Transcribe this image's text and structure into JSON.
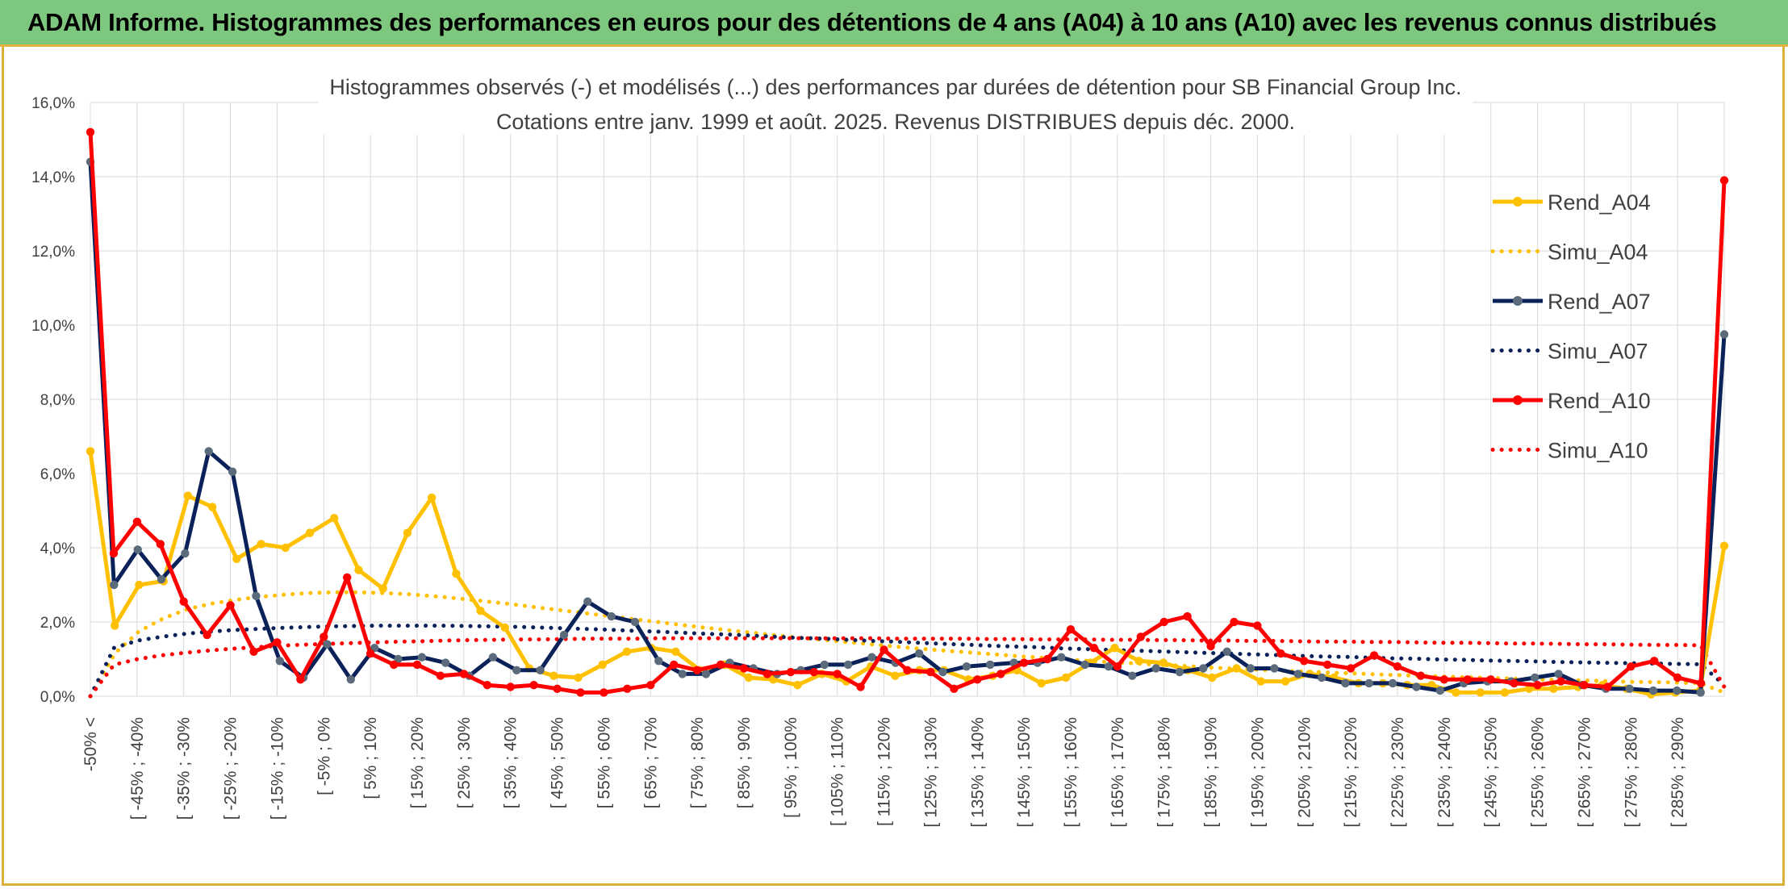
{
  "header": {
    "title": "ADAM Informe. Histogrammes des performances en euros pour des détentions de 4 ans (A04) à 10 ans (A10) avec les revenus connus distribués"
  },
  "colors": {
    "header_bg": "#7ec77e",
    "frame_border": "#d9b13a",
    "A04": "#FFC000",
    "A07": "#0B2159",
    "A07_marker": "#5B6B7B",
    "A10": "#FF0000",
    "grid": "#D9D9D9"
  },
  "chart_data": {
    "type": "line",
    "title": "Histogrammes observés (-) et modélisés (...) des performances par durées de détention pour SB Financial Group Inc.",
    "subtitle": "Cotations entre janv. 1999 et août. 2025. Revenus DISTRIBUES depuis déc. 2000.",
    "xlabel": "",
    "ylabel": "",
    "ylim": [
      0,
      16
    ],
    "y_ticks": [
      "0,0%",
      "2,0%",
      "4,0%",
      "6,0%",
      "8,0%",
      "10,0%",
      "12,0%",
      "14,0%",
      "16,0%"
    ],
    "grid": true,
    "legend_position": "right",
    "x_labels": [
      "-50% <",
      "[ -45% ; -40%",
      "[ -35% ; -30%",
      "[ -25% ; -20%",
      "[ -15% ; -10%",
      "[ -5% ; 0%",
      "[ 5% ; 10%",
      "[ 15% ; 20%",
      "[ 25% ; 30%",
      "[ 35% ; 40%",
      "[ 45% ; 50%",
      "[ 55% ; 60%",
      "[ 65% ; 70%",
      "[ 75% ; 80%",
      "[ 85% ; 90%",
      "[ 95% ; 100%",
      "[ 105% ; 110%",
      "[ 115% ; 120%",
      "[ 125% ; 130%",
      "[ 135% ; 140%",
      "[ 145% ; 150%",
      "[ 155% ; 160%",
      "[ 165% ; 170%",
      "[ 175% ; 180%",
      "[ 185% ; 190%",
      "[ 195% ; 200%",
      "[ 205% ; 210%",
      "[ 215% ; 220%",
      "[ 225% ; 230%",
      "[ 235% ; 240%",
      "[ 245% ; 250%",
      "[ 255% ; 260%",
      "[ 265% ; 270%",
      "[ 275% ; 280%",
      "[ 285% ; 290%"
    ],
    "series": [
      {
        "name": "Rend_A04",
        "style": "solid",
        "color": "#FFC000",
        "markers": true,
        "values": [
          6.6,
          1.9,
          3.0,
          3.1,
          5.4,
          5.1,
          3.7,
          4.1,
          4.0,
          4.4,
          4.8,
          3.4,
          2.9,
          4.4,
          5.35,
          3.3,
          2.3,
          1.85,
          0.75,
          0.55,
          0.5,
          0.85,
          1.2,
          1.3,
          1.2,
          0.7,
          0.85,
          0.5,
          0.45,
          0.3,
          0.6,
          0.4,
          0.8,
          0.55,
          0.7,
          0.7,
          0.45,
          0.55,
          0.7,
          0.35,
          0.5,
          0.9,
          1.3,
          0.95,
          0.9,
          0.7,
          0.5,
          0.75,
          0.4,
          0.4,
          0.6,
          0.5,
          0.35,
          0.35,
          0.3,
          0.3,
          0.1,
          0.1,
          0.1,
          0.2,
          0.2,
          0.25,
          0.3,
          0.2,
          0.05,
          0.1,
          0.15,
          4.05
        ]
      },
      {
        "name": "Simu_A04",
        "style": "dotted",
        "color": "#FFC000",
        "markers": false,
        "values": [
          0.0,
          1.15,
          1.75,
          2.1,
          2.35,
          2.5,
          2.6,
          2.68,
          2.74,
          2.78,
          2.8,
          2.8,
          2.78,
          2.75,
          2.7,
          2.64,
          2.57,
          2.5,
          2.42,
          2.34,
          2.26,
          2.18,
          2.1,
          2.02,
          1.94,
          1.86,
          1.79,
          1.72,
          1.65,
          1.58,
          1.52,
          1.46,
          1.4,
          1.34,
          1.28,
          1.23,
          1.18,
          1.13,
          1.08,
          1.04,
          0.99,
          0.95,
          0.91,
          0.88,
          0.84,
          0.81,
          0.77,
          0.74,
          0.71,
          0.68,
          0.66,
          0.63,
          0.61,
          0.58,
          0.56,
          0.54,
          0.52,
          0.5,
          0.48,
          0.46,
          0.44,
          0.43,
          0.41,
          0.39,
          0.38,
          0.37,
          0.35,
          0.1
        ]
      },
      {
        "name": "Rend_A07",
        "style": "solid",
        "color": "#0B2159",
        "markers": true,
        "values": [
          14.4,
          3.0,
          3.95,
          3.15,
          3.85,
          6.6,
          6.05,
          2.7,
          0.95,
          0.5,
          1.4,
          0.45,
          1.3,
          1.0,
          1.05,
          0.9,
          0.55,
          1.05,
          0.7,
          0.7,
          1.65,
          2.55,
          2.15,
          2.0,
          0.95,
          0.6,
          0.6,
          0.9,
          0.75,
          0.6,
          0.7,
          0.85,
          0.85,
          1.05,
          0.9,
          1.15,
          0.65,
          0.8,
          0.85,
          0.9,
          0.9,
          1.05,
          0.85,
          0.8,
          0.55,
          0.75,
          0.65,
          0.75,
          1.2,
          0.75,
          0.75,
          0.6,
          0.5,
          0.35,
          0.35,
          0.35,
          0.25,
          0.15,
          0.35,
          0.4,
          0.4,
          0.5,
          0.6,
          0.3,
          0.2,
          0.2,
          0.15,
          0.15,
          0.1,
          9.75
        ]
      },
      {
        "name": "Simu_A07",
        "style": "dotted",
        "color": "#0B2159",
        "markers": false,
        "values": [
          0.0,
          1.3,
          1.5,
          1.6,
          1.68,
          1.74,
          1.78,
          1.81,
          1.84,
          1.86,
          1.88,
          1.89,
          1.9,
          1.9,
          1.9,
          1.9,
          1.89,
          1.88,
          1.87,
          1.85,
          1.83,
          1.81,
          1.79,
          1.76,
          1.74,
          1.71,
          1.68,
          1.66,
          1.63,
          1.6,
          1.57,
          1.55,
          1.52,
          1.49,
          1.47,
          1.44,
          1.41,
          1.39,
          1.36,
          1.34,
          1.32,
          1.29,
          1.27,
          1.25,
          1.23,
          1.21,
          1.19,
          1.17,
          1.15,
          1.13,
          1.11,
          1.09,
          1.07,
          1.06,
          1.04,
          1.02,
          1.01,
          0.99,
          0.98,
          0.96,
          0.95,
          0.94,
          0.92,
          0.91,
          0.9,
          0.89,
          0.88,
          0.87,
          0.86,
          0.3
        ]
      },
      {
        "name": "Rend_A10",
        "style": "solid",
        "color": "#FF0000",
        "markers": true,
        "values": [
          15.2,
          3.85,
          4.7,
          4.1,
          2.55,
          1.65,
          2.45,
          1.2,
          1.45,
          0.45,
          1.6,
          3.2,
          1.15,
          0.85,
          0.85,
          0.55,
          0.6,
          0.3,
          0.25,
          0.3,
          0.2,
          0.1,
          0.1,
          0.2,
          0.3,
          0.85,
          0.7,
          0.85,
          0.75,
          0.6,
          0.65,
          0.65,
          0.6,
          0.25,
          1.25,
          0.7,
          0.65,
          0.2,
          0.45,
          0.6,
          0.9,
          1.0,
          1.8,
          1.3,
          0.8,
          1.6,
          2.0,
          2.15,
          1.35,
          2.0,
          1.9,
          1.15,
          0.95,
          0.85,
          0.75,
          1.1,
          0.8,
          0.55,
          0.45,
          0.45,
          0.45,
          0.35,
          0.3,
          0.4,
          0.3,
          0.25,
          0.8,
          0.95,
          0.5,
          0.35,
          13.9
        ]
      },
      {
        "name": "Simu_A10",
        "style": "dotted",
        "color": "#FF0000",
        "markers": false,
        "values": [
          0.0,
          0.85,
          1.0,
          1.1,
          1.17,
          1.23,
          1.28,
          1.32,
          1.36,
          1.39,
          1.41,
          1.43,
          1.45,
          1.47,
          1.48,
          1.5,
          1.51,
          1.52,
          1.53,
          1.53,
          1.54,
          1.55,
          1.55,
          1.55,
          1.56,
          1.56,
          1.56,
          1.56,
          1.56,
          1.56,
          1.56,
          1.56,
          1.56,
          1.56,
          1.55,
          1.55,
          1.55,
          1.55,
          1.54,
          1.54,
          1.53,
          1.53,
          1.53,
          1.52,
          1.52,
          1.51,
          1.51,
          1.5,
          1.5,
          1.49,
          1.49,
          1.48,
          1.47,
          1.47,
          1.46,
          1.46,
          1.45,
          1.44,
          1.44,
          1.43,
          1.42,
          1.42,
          1.41,
          1.4,
          1.4,
          1.39,
          1.38,
          1.38,
          1.37,
          0.25
        ]
      }
    ]
  }
}
